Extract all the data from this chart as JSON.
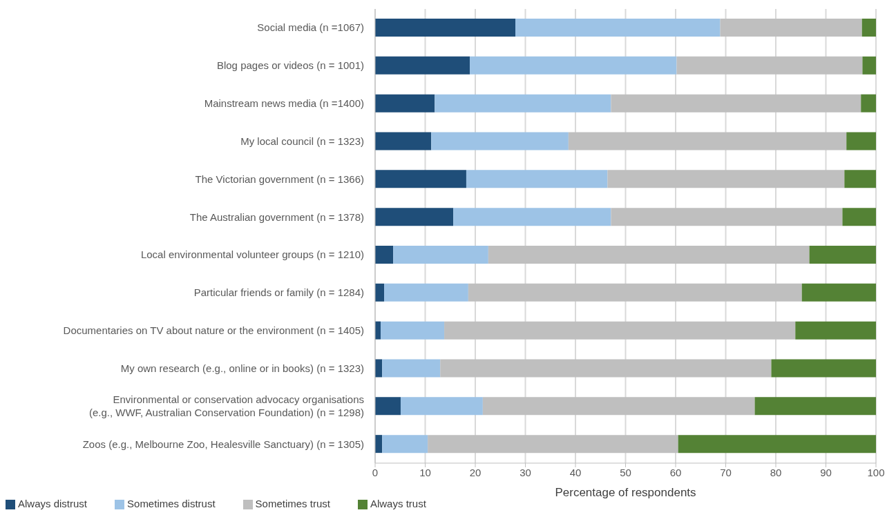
{
  "chart_data": {
    "type": "bar",
    "orientation": "horizontal",
    "stacked": true,
    "xlabel": "Percentage of respondents",
    "categories": [
      "Social media (n =1067)",
      "Blog pages or videos (n = 1001)",
      "Mainstream news media (n =1400)",
      "My local council (n = 1323)",
      "The Victorian government (n = 1366)",
      "The Australian government (n = 1378)",
      "Local environmental volunteer groups (n = 1210)",
      "Particular friends or family (n = 1284)",
      "Documentaries on TV about nature or the environment (n = 1405)",
      "My own research (e.g., online or in books) (n = 1323)",
      "Environmental or conservation advocacy organisations\n(e.g., WWF, Australian Conservation Foundation) (n = 1298)",
      "Zoos (e.g., Melbourne Zoo, Healesville Sanctuary) (n = 1305)"
    ],
    "series": [
      {
        "name": "Always distrust",
        "color": "#1f4e79",
        "values": [
          28.0,
          18.9,
          11.9,
          11.2,
          18.2,
          15.6,
          3.6,
          1.8,
          1.1,
          1.4,
          5.1,
          1.4
        ]
      },
      {
        "name": "Sometimes distrust",
        "color": "#9dc3e6",
        "values": [
          40.9,
          41.3,
          35.2,
          27.4,
          28.2,
          31.5,
          19.0,
          16.8,
          12.7,
          11.6,
          16.4,
          9.1
        ]
      },
      {
        "name": "Sometimes trust",
        "color": "#bfbfbf",
        "values": [
          28.3,
          37.1,
          49.9,
          55.5,
          47.3,
          46.2,
          64.1,
          66.6,
          70.1,
          66.1,
          54.3,
          50.0
        ]
      },
      {
        "name": "Always trust",
        "color": "#548235",
        "values": [
          2.8,
          2.7,
          3.0,
          5.9,
          6.3,
          6.7,
          13.3,
          14.8,
          16.1,
          20.9,
          24.2,
          39.5
        ]
      }
    ],
    "xlim": [
      0,
      100
    ],
    "xticks": [
      0,
      10,
      20,
      30,
      40,
      50,
      60,
      70,
      80,
      90,
      100
    ],
    "grid": "x",
    "legend": "bottom left"
  }
}
